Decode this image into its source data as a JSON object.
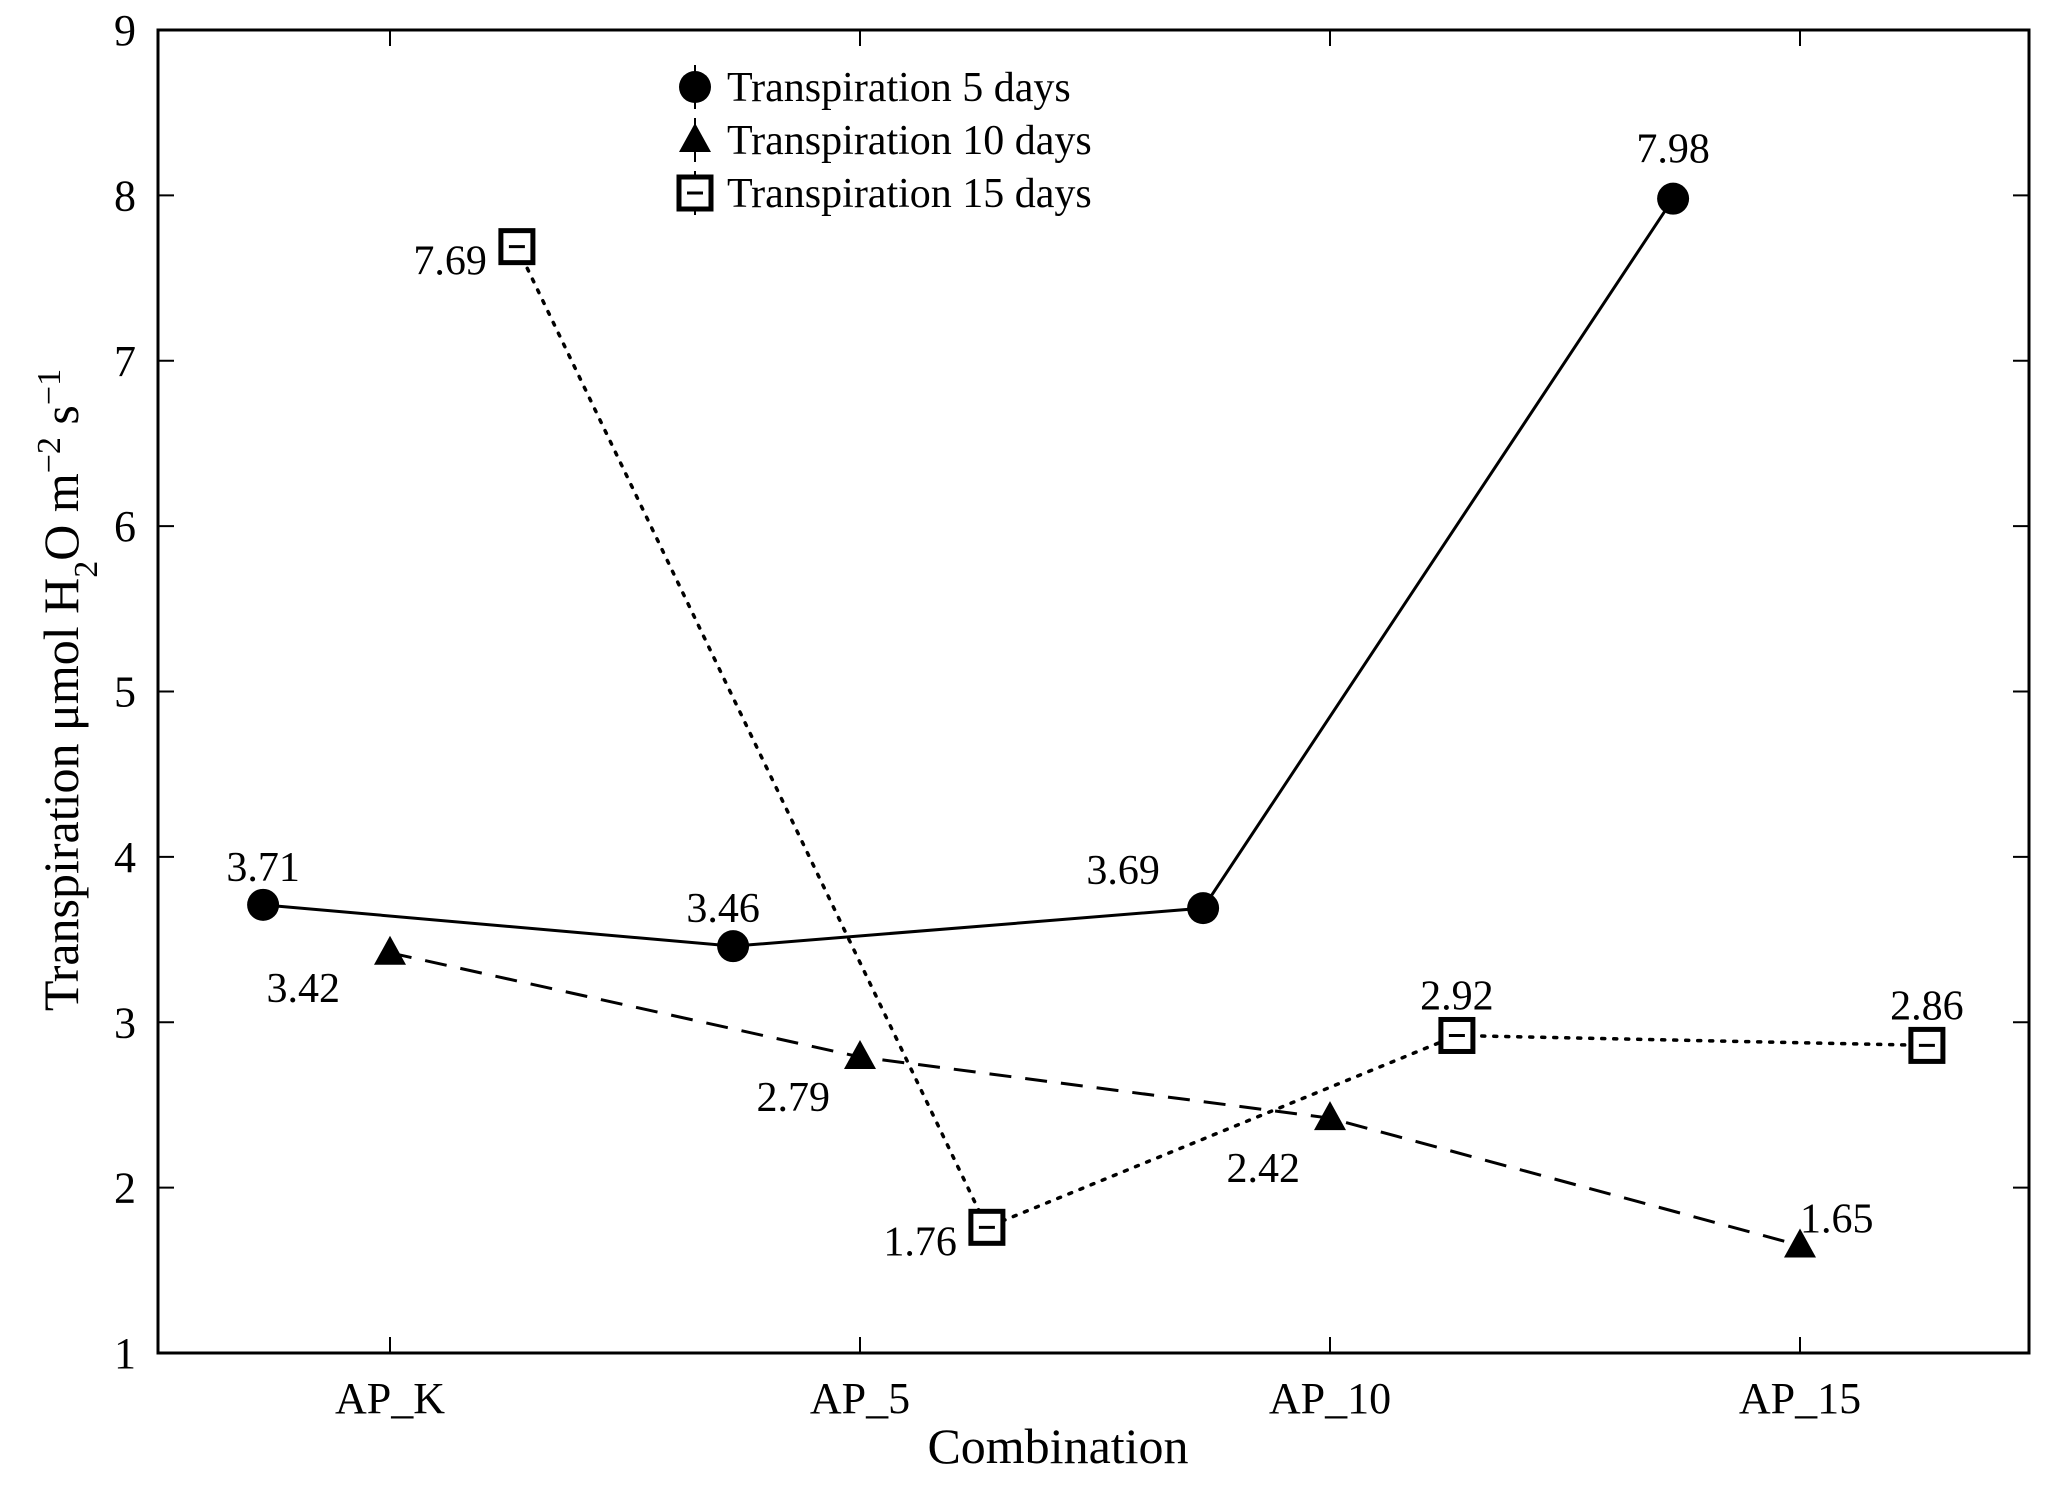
{
  "chart_data": {
    "type": "line",
    "title": "",
    "xlabel": "Combination",
    "ylabel_parts": {
      "main": "Transpiration μmol H",
      "sub2": "2",
      "mid": "O m",
      "sup1": "−2",
      "mid2": " s",
      "sup2": "−1"
    },
    "categories": [
      "AP_K",
      "AP_5",
      "AP_10",
      "AP_15"
    ],
    "ylim": [
      1,
      9
    ],
    "yticks": [
      "1",
      "2",
      "3",
      "4",
      "5",
      "6",
      "7",
      "8",
      "9"
    ],
    "legend_position": "top-center",
    "series": [
      {
        "name": "Transpiration 5 days",
        "marker": "circle",
        "line": "solid",
        "offset": -0.27,
        "values": [
          3.71,
          3.46,
          3.69,
          7.98
        ],
        "labels": [
          "3.71",
          "3.46",
          "3.69",
          "7.98"
        ]
      },
      {
        "name": "Transpiration 10 days",
        "marker": "triangle",
        "line": "dashed",
        "offset": 0,
        "values": [
          3.42,
          2.79,
          2.42,
          1.65
        ],
        "labels": [
          "3.42",
          "2.79",
          "2.42",
          "1.65"
        ]
      },
      {
        "name": "Transpiration 15 days",
        "marker": "square",
        "line": "dotted",
        "offset": 0.27,
        "values": [
          7.69,
          1.76,
          2.92,
          2.86
        ],
        "labels": [
          "7.69",
          "1.76",
          "2.92",
          "2.86"
        ]
      }
    ]
  }
}
